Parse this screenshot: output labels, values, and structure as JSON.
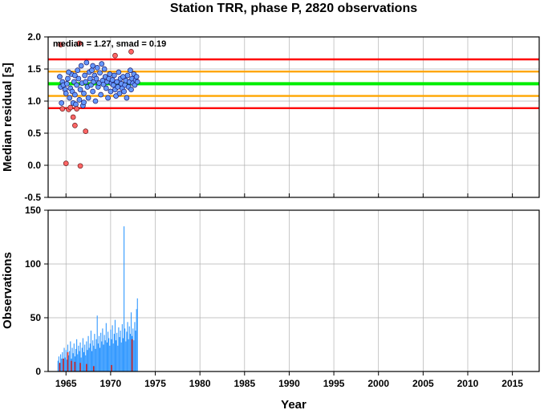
{
  "title": "Station TRR, phase P, 2820 observations",
  "chart_data": [
    {
      "type": "scatter",
      "ylabel": "Median residual [s]",
      "xlim": [
        1963.0,
        2018.0
      ],
      "ylim": [
        -0.5,
        2.0
      ],
      "yticks": [
        "-0.5",
        "0.0",
        "0.5",
        "1.0",
        "1.5",
        "2.0"
      ],
      "grid": true,
      "annotation": "median = 1.27, smad = 0.19",
      "reference_lines": [
        {
          "y": 1.27,
          "color": "#00ee00"
        },
        {
          "y": 1.46,
          "color": "#ffa500"
        },
        {
          "y": 1.08,
          "color": "#ffa500"
        },
        {
          "y": 1.65,
          "color": "#ff0000"
        },
        {
          "y": 0.89,
          "color": "#ff0000"
        }
      ],
      "normal_color": "#6699ff",
      "outlier_color": "#ff6666",
      "normal_points": [
        [
          1964.3,
          1.38
        ],
        [
          1964.4,
          1.22
        ],
        [
          1964.6,
          1.3
        ],
        [
          1964.7,
          1.25
        ],
        [
          1964.9,
          1.18
        ],
        [
          1965.0,
          1.12
        ],
        [
          1965.1,
          1.27
        ],
        [
          1965.2,
          1.35
        ],
        [
          1965.4,
          1.05
        ],
        [
          1965.5,
          1.2
        ],
        [
          1965.6,
          1.42
        ],
        [
          1965.7,
          1.15
        ],
        [
          1965.8,
          0.97
        ],
        [
          1965.9,
          1.3
        ],
        [
          1966.0,
          1.1
        ],
        [
          1966.1,
          0.95
        ],
        [
          1966.2,
          1.25
        ],
        [
          1966.3,
          1.48
        ],
        [
          1966.4,
          1.35
        ],
        [
          1966.5,
          1.02
        ],
        [
          1966.6,
          1.18
        ],
        [
          1966.7,
          1.55
        ],
        [
          1966.8,
          1.28
        ],
        [
          1966.9,
          0.93
        ],
        [
          1967.0,
          1.12
        ],
        [
          1967.1,
          1.4
        ],
        [
          1967.2,
          1.3
        ],
        [
          1967.3,
          1.6
        ],
        [
          1967.4,
          1.22
        ],
        [
          1967.5,
          1.05
        ],
        [
          1967.6,
          1.45
        ],
        [
          1967.7,
          1.35
        ],
        [
          1967.8,
          1.25
        ],
        [
          1967.9,
          1.48
        ],
        [
          1968.0,
          1.15
        ],
        [
          1968.1,
          1.3
        ],
        [
          1968.2,
          1.4
        ],
        [
          1968.3,
          1.0
        ],
        [
          1968.4,
          1.35
        ],
        [
          1968.5,
          1.52
        ],
        [
          1968.6,
          1.22
        ],
        [
          1968.7,
          1.28
        ],
        [
          1968.8,
          1.44
        ],
        [
          1968.9,
          1.1
        ],
        [
          1969.0,
          1.58
        ],
        [
          1969.1,
          1.32
        ],
        [
          1969.2,
          1.26
        ],
        [
          1969.3,
          1.5
        ],
        [
          1969.4,
          1.38
        ],
        [
          1969.5,
          1.2
        ],
        [
          1969.6,
          1.3
        ],
        [
          1969.7,
          1.05
        ],
        [
          1969.8,
          1.35
        ],
        [
          1969.9,
          1.42
        ],
        [
          1970.0,
          1.15
        ],
        [
          1970.1,
          1.28
        ],
        [
          1970.2,
          1.33
        ],
        [
          1970.3,
          1.25
        ],
        [
          1970.4,
          1.4
        ],
        [
          1970.5,
          1.18
        ],
        [
          1970.6,
          1.08
        ],
        [
          1970.7,
          1.3
        ],
        [
          1970.8,
          1.22
        ],
        [
          1970.9,
          1.45
        ],
        [
          1971.0,
          1.12
        ],
        [
          1971.1,
          1.35
        ],
        [
          1971.2,
          1.27
        ],
        [
          1971.3,
          1.2
        ],
        [
          1971.4,
          1.38
        ],
        [
          1971.5,
          1.15
        ],
        [
          1971.6,
          1.25
        ],
        [
          1971.7,
          1.32
        ],
        [
          1971.8,
          1.05
        ],
        [
          1971.9,
          1.4
        ],
        [
          1972.0,
          1.22
        ],
        [
          1972.1,
          1.3
        ],
        [
          1972.2,
          1.48
        ],
        [
          1972.3,
          1.18
        ],
        [
          1972.4,
          1.35
        ],
        [
          1972.5,
          1.28
        ],
        [
          1972.6,
          1.42
        ],
        [
          1972.7,
          1.25
        ],
        [
          1972.8,
          1.33
        ],
        [
          1972.9,
          1.38
        ],
        [
          1973.0,
          1.3
        ],
        [
          1964.5,
          0.97
        ],
        [
          1965.3,
          1.45
        ],
        [
          1966.0,
          1.4
        ],
        [
          1967.0,
          0.98
        ],
        [
          1968.0,
          1.55
        ]
      ],
      "outlier_points": [
        [
          1964.4,
          1.88
        ],
        [
          1965.0,
          0.03
        ],
        [
          1965.3,
          0.87
        ],
        [
          1965.5,
          0.9
        ],
        [
          1965.8,
          0.75
        ],
        [
          1966.0,
          0.62
        ],
        [
          1966.2,
          0.88
        ],
        [
          1966.5,
          1.9
        ],
        [
          1966.6,
          -0.01
        ],
        [
          1967.2,
          0.53
        ],
        [
          1970.5,
          1.71
        ],
        [
          1972.3,
          1.77
        ],
        [
          1964.6,
          0.88
        ]
      ]
    },
    {
      "type": "bar",
      "xlabel": "Year",
      "ylabel": "Observations",
      "xlim": [
        1963.0,
        2018.0
      ],
      "ylim": [
        0,
        150
      ],
      "yticks": [
        "0",
        "50",
        "100",
        "150"
      ],
      "xticks": [
        "1965",
        "1970",
        "1975",
        "1980",
        "1985",
        "1990",
        "1995",
        "2000",
        "2005",
        "2010",
        "2015"
      ],
      "grid": true,
      "series": [
        {
          "color": "#3399ff",
          "points": [
            [
              1964.1,
              10
            ],
            [
              1964.2,
              14
            ],
            [
              1964.3,
              8
            ],
            [
              1964.4,
              16
            ],
            [
              1964.5,
              12
            ],
            [
              1964.6,
              18
            ],
            [
              1964.7,
              9
            ],
            [
              1964.8,
              22
            ],
            [
              1964.9,
              13
            ],
            [
              1965.0,
              20
            ],
            [
              1965.1,
              11
            ],
            [
              1965.2,
              25
            ],
            [
              1965.3,
              15
            ],
            [
              1965.4,
              19
            ],
            [
              1965.5,
              28
            ],
            [
              1965.6,
              12
            ],
            [
              1965.7,
              22
            ],
            [
              1965.8,
              17
            ],
            [
              1965.9,
              26
            ],
            [
              1966.0,
              14
            ],
            [
              1966.1,
              21
            ],
            [
              1966.2,
              30
            ],
            [
              1966.3,
              16
            ],
            [
              1966.4,
              24
            ],
            [
              1966.5,
              19
            ],
            [
              1966.6,
              27
            ],
            [
              1966.7,
              13
            ],
            [
              1966.8,
              22
            ],
            [
              1966.9,
              31
            ],
            [
              1967.0,
              18
            ],
            [
              1967.1,
              25
            ],
            [
              1967.2,
              15
            ],
            [
              1967.3,
              28
            ],
            [
              1967.4,
              20
            ],
            [
              1967.5,
              33
            ],
            [
              1967.6,
              22
            ],
            [
              1967.7,
              26
            ],
            [
              1967.8,
              38
            ],
            [
              1967.9,
              19
            ],
            [
              1968.0,
              29
            ],
            [
              1968.1,
              24
            ],
            [
              1968.2,
              35
            ],
            [
              1968.3,
              21
            ],
            [
              1968.4,
              30
            ],
            [
              1968.5,
              52
            ],
            [
              1968.6,
              26
            ],
            [
              1968.7,
              33
            ],
            [
              1968.8,
              22
            ],
            [
              1968.9,
              36
            ],
            [
              1969.0,
              28
            ],
            [
              1969.1,
              40
            ],
            [
              1969.2,
              25
            ],
            [
              1969.3,
              34
            ],
            [
              1969.4,
              29
            ],
            [
              1969.5,
              45
            ],
            [
              1969.6,
              27
            ],
            [
              1969.7,
              37
            ],
            [
              1969.8,
              31
            ],
            [
              1969.9,
              24
            ],
            [
              1970.0,
              39
            ],
            [
              1970.1,
              30
            ],
            [
              1970.2,
              43
            ],
            [
              1970.3,
              26
            ],
            [
              1970.4,
              35
            ],
            [
              1970.5,
              48
            ],
            [
              1970.6,
              29
            ],
            [
              1970.7,
              36
            ],
            [
              1970.8,
              24
            ],
            [
              1970.9,
              41
            ],
            [
              1971.0,
              32
            ],
            [
              1971.1,
              38
            ],
            [
              1971.2,
              27
            ],
            [
              1971.3,
              44
            ],
            [
              1971.4,
              31
            ],
            [
              1971.5,
              135
            ],
            [
              1971.6,
              40
            ],
            [
              1971.7,
              28
            ],
            [
              1971.8,
              37
            ],
            [
              1971.9,
              46
            ],
            [
              1972.0,
              30
            ],
            [
              1972.1,
              42
            ],
            [
              1972.2,
              35
            ],
            [
              1972.3,
              55
            ],
            [
              1972.4,
              33
            ],
            [
              1972.5,
              40
            ],
            [
              1972.6,
              29
            ],
            [
              1972.7,
              46
            ],
            [
              1972.8,
              38
            ],
            [
              1972.9,
              58
            ],
            [
              1973.0,
              68
            ]
          ]
        },
        {
          "color": "#cc2222",
          "points": [
            [
              1964.3,
              8
            ],
            [
              1964.7,
              12
            ],
            [
              1965.2,
              18
            ],
            [
              1965.6,
              10
            ],
            [
              1966.0,
              9
            ],
            [
              1966.6,
              8
            ],
            [
              1967.3,
              7
            ],
            [
              1968.1,
              5
            ],
            [
              1970.1,
              6
            ],
            [
              1972.4,
              30
            ]
          ]
        }
      ]
    }
  ]
}
